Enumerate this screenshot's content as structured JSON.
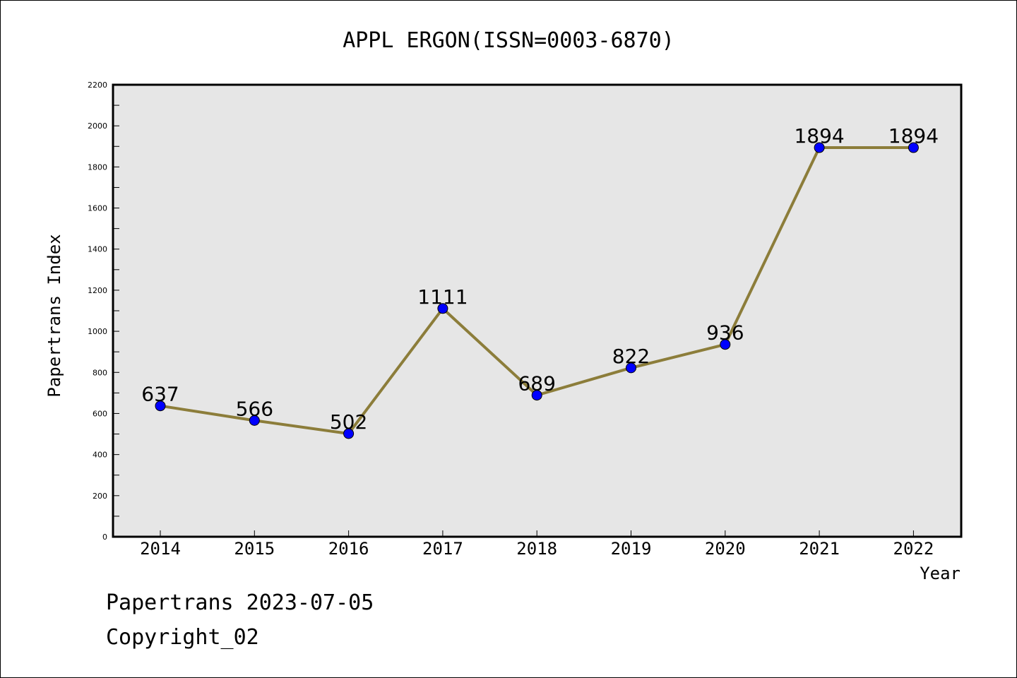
{
  "chart_data": {
    "type": "line",
    "title": "APPL ERGON(ISSN=0003-6870)",
    "xlabel": "Year",
    "ylabel": "Papertrans Index",
    "categories": [
      "2014",
      "2015",
      "2016",
      "2017",
      "2018",
      "2019",
      "2020",
      "2021",
      "2022"
    ],
    "values": [
      637,
      566,
      502,
      1111,
      689,
      822,
      936,
      1894,
      1894
    ],
    "ylim": [
      0,
      2200
    ],
    "yticks": [
      "0",
      "200",
      "400",
      "600",
      "800",
      "1000",
      "1200",
      "1400",
      "1600",
      "1800",
      "2000",
      "2200"
    ],
    "grid": false,
    "colors": {
      "line": "#8c7d3a",
      "marker": "#0000ff",
      "plot_bg": "#e6e6e6"
    }
  },
  "footer": {
    "line1": "Papertrans 2023-07-05",
    "line2": "Copyright_02"
  }
}
